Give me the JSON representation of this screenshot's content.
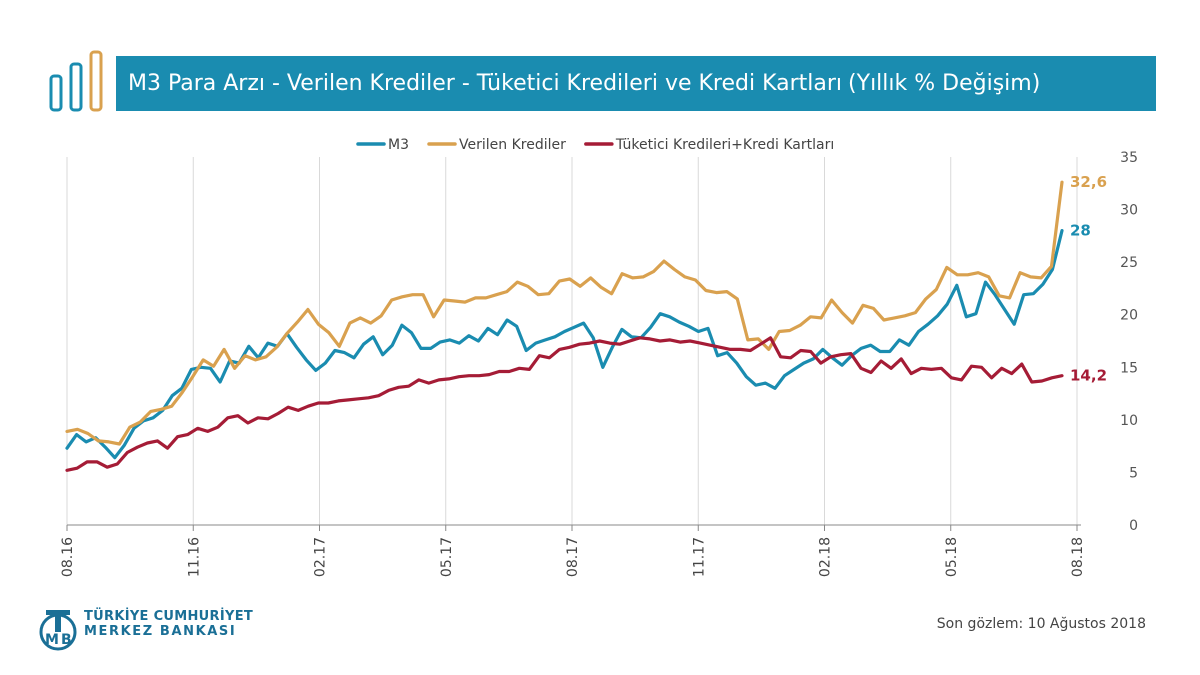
{
  "header": {
    "title": "M3 Para Arzı - Verilen Krediler - Tüketici Kredileri ve Kredi Kartları",
    "unit": "(Yıllık % Değişim)"
  },
  "footer": {
    "bank_line1": "TÜRKİYE CUMHURİYET",
    "bank_line2": "MERKEZ BANKASI",
    "note": "Son gözlem: 10 Ağustos 2018"
  },
  "colors": {
    "title_bg": "#1a8cb0",
    "m3": "#1a8cb0",
    "krediler": "#d9a14f",
    "tuketici": "#a51c36"
  },
  "chart_data": {
    "type": "line",
    "title": "M3 Para Arzı - Verilen Krediler - Tüketici Kredileri ve Kredi Kartları (Yıllık % Değişim)",
    "x_range": [
      "08.16",
      "08.18"
    ],
    "x_ticks": [
      "08.16",
      "11.16",
      "02.17",
      "05.17",
      "08.17",
      "11.17",
      "02.18",
      "05.18",
      "08.18"
    ],
    "ylim": [
      0,
      35
    ],
    "y_ticks": [
      0,
      5,
      10,
      15,
      20,
      25,
      30,
      35
    ],
    "y_axis_side": "right",
    "grid": "vertical",
    "legend_position": "top-center",
    "series": [
      {
        "name": "M3",
        "color_key": "m3",
        "end_label": "28",
        "values": [
          7.3,
          8.6,
          7.9,
          8.3,
          7.4,
          6.4,
          7.6,
          9.2,
          9.9,
          10.2,
          10.9,
          12.3,
          13.0,
          14.8,
          15.0,
          14.9,
          13.6,
          15.6,
          15.4,
          17.0,
          15.9,
          17.3,
          17.0,
          18.2,
          16.9,
          15.7,
          14.7,
          15.4,
          16.6,
          16.4,
          15.9,
          17.2,
          17.9,
          16.2,
          17.1,
          19.0,
          18.3,
          16.8,
          16.8,
          17.4,
          17.6,
          17.3,
          18.0,
          17.5,
          18.7,
          18.1,
          19.5,
          18.9,
          16.6,
          17.3,
          17.6,
          17.9,
          18.4,
          18.8,
          19.2,
          17.8,
          15.0,
          16.9,
          18.6,
          17.9,
          17.8,
          18.8,
          20.1,
          19.8,
          19.3,
          18.9,
          18.4,
          18.7,
          16.1,
          16.4,
          15.4,
          14.1,
          13.3,
          13.5,
          13.0,
          14.2,
          14.8,
          15.4,
          15.8,
          16.7,
          15.9,
          15.2,
          16.1,
          16.8,
          17.1,
          16.5,
          16.5,
          17.6,
          17.1,
          18.4,
          19.1,
          19.9,
          21.0,
          22.8,
          19.8,
          20.1,
          23.1,
          21.9,
          20.5,
          19.1,
          21.9,
          22.0,
          22.9,
          24.3,
          28.0
        ]
      },
      {
        "name": "Verilen Krediler",
        "color_key": "krediler",
        "end_label": "32,6",
        "values": [
          8.9,
          9.1,
          8.7,
          8.0,
          7.9,
          7.7,
          9.3,
          9.8,
          10.8,
          11.0,
          11.3,
          12.6,
          14.1,
          15.7,
          15.1,
          16.7,
          14.9,
          16.1,
          15.7,
          16.0,
          16.9,
          18.2,
          19.3,
          20.5,
          19.1,
          18.3,
          17.0,
          19.2,
          19.7,
          19.2,
          19.9,
          21.4,
          21.7,
          21.9,
          21.9,
          19.8,
          21.4,
          21.3,
          21.2,
          21.6,
          21.6,
          21.9,
          22.2,
          23.1,
          22.7,
          21.9,
          22.0,
          23.2,
          23.4,
          22.7,
          23.5,
          22.6,
          22.0,
          23.9,
          23.5,
          23.6,
          24.1,
          25.1,
          24.3,
          23.6,
          23.3,
          22.3,
          22.1,
          22.2,
          21.5,
          17.6,
          17.7,
          16.7,
          18.4,
          18.5,
          19.0,
          19.8,
          19.7,
          21.4,
          20.2,
          19.2,
          20.9,
          20.6,
          19.5,
          19.7,
          19.9,
          20.2,
          21.5,
          22.4,
          24.5,
          23.8,
          23.8,
          24.0,
          23.6,
          21.8,
          21.6,
          24.0,
          23.6,
          23.5,
          24.6,
          32.6
        ]
      },
      {
        "name": "Tüketici Kredileri+Kredi Kartları",
        "color_key": "tuketici",
        "end_label": "14,2",
        "values": [
          5.2,
          5.4,
          6.0,
          6.0,
          5.5,
          5.8,
          6.9,
          7.4,
          7.8,
          8.0,
          7.3,
          8.4,
          8.6,
          9.2,
          8.9,
          9.3,
          10.2,
          10.4,
          9.7,
          10.2,
          10.1,
          10.6,
          11.2,
          10.9,
          11.3,
          11.6,
          11.6,
          11.8,
          11.9,
          12.0,
          12.1,
          12.3,
          12.8,
          13.1,
          13.2,
          13.8,
          13.5,
          13.8,
          13.9,
          14.1,
          14.2,
          14.2,
          14.3,
          14.6,
          14.6,
          14.9,
          14.8,
          16.1,
          15.9,
          16.7,
          16.9,
          17.2,
          17.3,
          17.5,
          17.3,
          17.2,
          17.5,
          17.8,
          17.7,
          17.5,
          17.6,
          17.4,
          17.5,
          17.3,
          17.1,
          16.9,
          16.7,
          16.7,
          16.6,
          17.2,
          17.8,
          16.0,
          15.9,
          16.6,
          16.5,
          15.4,
          16.0,
          16.2,
          16.3,
          14.9,
          14.5,
          15.6,
          14.9,
          15.8,
          14.4,
          14.9,
          14.8,
          14.9,
          14.0,
          13.8,
          15.1,
          15.0,
          14.0,
          14.9,
          14.4,
          15.3,
          13.6,
          13.7,
          14.0,
          14.2
        ]
      }
    ]
  }
}
